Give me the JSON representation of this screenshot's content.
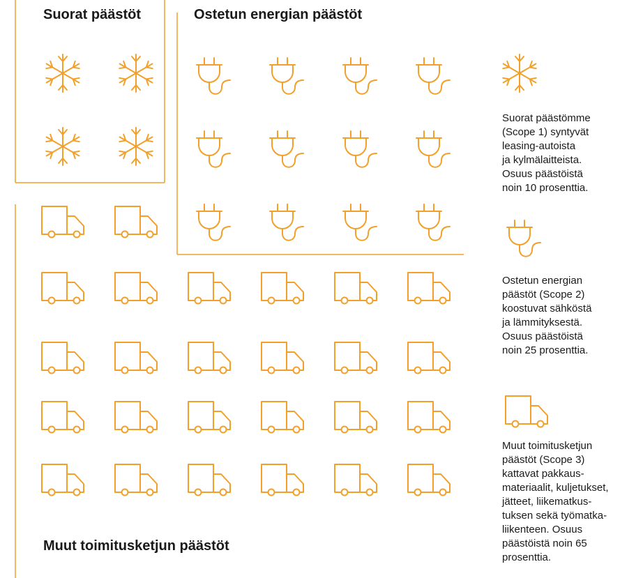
{
  "sections": [
    {
      "title": "Suorat päästöt"
    },
    {
      "title": "Ostetun energian päästöt"
    },
    {
      "title": "Muut toimitusketjun päästöt"
    }
  ],
  "legend": [
    {
      "lines": [
        "Suorat päästömme",
        "(Scope 1) syntyvät",
        "leasing-autoista",
        "ja kylmälaitteista.",
        "Osuus päästöistä",
        "noin 10 prosenttia."
      ]
    },
    {
      "lines": [
        "Ostetun energian",
        "päästöt (Scope 2)",
        "koostuvat sähköstä",
        "ja lämmityksestä.",
        "Osuus päästöistä",
        "noin 25 prosenttia."
      ]
    },
    {
      "lines": [
        "Muut toimitusketjun",
        "päästöt (Scope 3)",
        "kattavat pakkaus-",
        "materiaalit, kuljetukset,",
        "jätteet, liikematkus-",
        "tuksen sekä työmatka-",
        "liikenteen. Osuus",
        "päästöistä noin 65",
        "prosenttia."
      ]
    }
  ]
}
